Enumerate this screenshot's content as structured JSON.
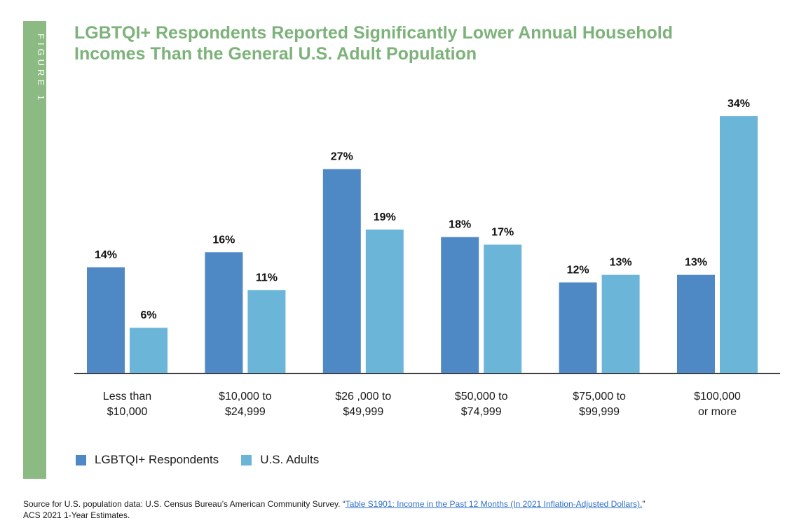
{
  "figure_label": "FIGURE 1",
  "colors": {
    "band": "#8cba83",
    "title": "#7db27a",
    "series_lgbtqi": "#4f89c5",
    "series_us": "#6bb6d8",
    "axis": "#333333",
    "link": "#2f6fc9"
  },
  "chart_data": {
    "type": "bar",
    "title": "LGBTQI+ Respondents Reported Significantly Lower Annual Household Incomes Than the General U.S. Adult Population",
    "categories": [
      [
        "Less than",
        "$10,000"
      ],
      [
        "$10,000 to",
        "$24,999"
      ],
      [
        "$26 ,000 to",
        "$49,999"
      ],
      [
        "$50,000 to",
        "$74,999"
      ],
      [
        "$75,000 to",
        "$99,999"
      ],
      [
        "$100,000",
        "or more"
      ]
    ],
    "series": [
      {
        "name": "LGBTQI+ Respondents",
        "color": "#4f89c5",
        "values": [
          14,
          16,
          27,
          18,
          12,
          13
        ],
        "labels": [
          "14%",
          "16%",
          "27%",
          "18%",
          "12%",
          "13%"
        ]
      },
      {
        "name": "U.S. Adults",
        "color": "#6bb6d8",
        "values": [
          6,
          11,
          19,
          17,
          13,
          34
        ],
        "labels": [
          "6%",
          "11%",
          "19%",
          "17%",
          "13%",
          "34%"
        ]
      }
    ],
    "ylim": [
      0,
      34
    ],
    "grid": false,
    "legend_position": "bottom-left",
    "xlabel": "",
    "ylabel": ""
  },
  "source": {
    "prefix": "Source for U.S. population data: U.S. Census Bureau’s American Community Survey. “",
    "link_text": "Table S1901: Income in the Past 12 Months (In 2021 Inflation-Adjusted Dollars).",
    "suffix": "”",
    "line2": "ACS 2021 1-Year Estimates."
  }
}
